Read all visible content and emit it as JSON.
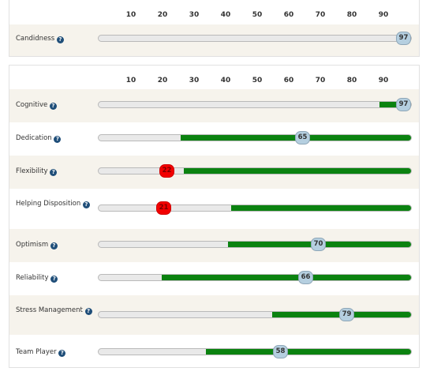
{
  "scale": [
    "10",
    "20",
    "30",
    "40",
    "50",
    "60",
    "70",
    "80",
    "90"
  ],
  "help_glyph": "?",
  "colors": {
    "fill": "#0b8210",
    "track": "#e9e9e9",
    "marker": "#b5cfe0",
    "marker_low": "#f20000",
    "row_shade": "#f6f3ec"
  },
  "top_metrics": [
    {
      "label": "Candidness",
      "score": "97",
      "score_value": 97,
      "range_start": 97,
      "low": false
    }
  ],
  "metrics": [
    {
      "label": "Cognitive",
      "score": "97",
      "score_value": 97,
      "range_start": 89,
      "low": false
    },
    {
      "label": "Dedication",
      "score": "65",
      "score_value": 65,
      "range_start": 26,
      "low": false
    },
    {
      "label": "Flexibility",
      "score": "22",
      "score_value": 22,
      "range_start": 27,
      "low": true
    },
    {
      "label": "Helping Disposition",
      "score": "21",
      "score_value": 21,
      "range_start": 42,
      "low": true
    },
    {
      "label": "Optimism",
      "score": "70",
      "score_value": 70,
      "range_start": 41,
      "low": false
    },
    {
      "label": "Reliability",
      "score": "66",
      "score_value": 66,
      "range_start": 20,
      "low": false
    },
    {
      "label": "Stress Management",
      "score": "79",
      "score_value": 79,
      "range_start": 55,
      "low": false
    },
    {
      "label": "Team Player",
      "score": "58",
      "score_value": 58,
      "range_start": 34,
      "low": false
    }
  ]
}
